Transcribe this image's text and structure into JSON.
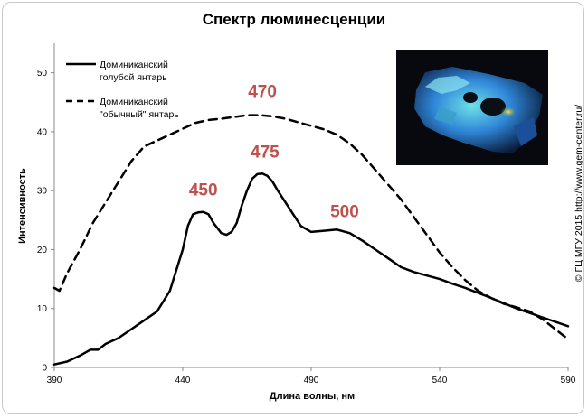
{
  "chart_data": {
    "type": "line",
    "title": "Спектр люминесценции",
    "xlabel": "Длина волны, нм",
    "ylabel": "Интенсивность",
    "xlim": [
      390,
      590
    ],
    "ylim": [
      0,
      55
    ],
    "xticks": [
      390,
      440,
      490,
      540,
      590
    ],
    "yticks": [
      0,
      10,
      20,
      30,
      40,
      50
    ],
    "grid": false,
    "legend_position": "top-left",
    "series": [
      {
        "name": "Доминиканский голубой янтарь",
        "line_style": "solid",
        "color": "#000000",
        "x": [
          390,
          395,
          400,
          404,
          407,
          410,
          415,
          420,
          425,
          430,
          435,
          440,
          442,
          444,
          446,
          448,
          450,
          452,
          455,
          457,
          459,
          461,
          463,
          465,
          467,
          469,
          471,
          473,
          475,
          477,
          480,
          483,
          486,
          490,
          495,
          500,
          505,
          510,
          515,
          520,
          525,
          530,
          535,
          540,
          545,
          550,
          560,
          570,
          580,
          590
        ],
        "y": [
          0.5,
          1.0,
          2.0,
          3.0,
          3.0,
          4.0,
          5.0,
          6.5,
          8.0,
          9.5,
          13.0,
          20.0,
          24.0,
          26.0,
          26.3,
          26.4,
          26.0,
          24.5,
          22.8,
          22.5,
          23.0,
          24.5,
          27.5,
          30.0,
          32.0,
          32.8,
          32.9,
          32.5,
          31.5,
          30.0,
          28.0,
          26.0,
          24.0,
          23.0,
          23.2,
          23.4,
          22.8,
          21.5,
          20.0,
          18.5,
          17.0,
          16.2,
          15.6,
          15.0,
          14.2,
          13.5,
          11.8,
          10.0,
          8.5,
          7.0
        ]
      },
      {
        "name": "Доминиканский \"обычный\" янтарь",
        "line_style": "dashed",
        "color": "#000000",
        "x": [
          390,
          392,
          395,
          400,
          405,
          410,
          415,
          420,
          425,
          430,
          435,
          440,
          445,
          450,
          455,
          460,
          465,
          470,
          475,
          480,
          485,
          490,
          495,
          500,
          505,
          510,
          515,
          520,
          525,
          530,
          535,
          540,
          545,
          550,
          555,
          560,
          565,
          570,
          575,
          580,
          585,
          590
        ],
        "y": [
          13.5,
          13.0,
          16.0,
          20.0,
          24.5,
          28.0,
          31.5,
          35.0,
          37.5,
          38.5,
          39.5,
          40.5,
          41.5,
          42.0,
          42.2,
          42.5,
          42.8,
          42.8,
          42.6,
          42.2,
          41.6,
          41.0,
          40.4,
          39.5,
          38.0,
          36.0,
          33.5,
          31.0,
          28.5,
          25.5,
          22.5,
          19.5,
          17.0,
          14.8,
          13.0,
          11.8,
          10.8,
          10.2,
          9.5,
          8.2,
          6.5,
          4.8
        ]
      }
    ],
    "annotations": [
      {
        "text": "450",
        "x": 448,
        "y": 26.4
      },
      {
        "text": "475",
        "x": 472,
        "y": 32.9
      },
      {
        "text": "470",
        "x": 471,
        "y": 42.8
      },
      {
        "text": "500",
        "x": 503,
        "y": 23.4
      }
    ]
  },
  "legend": {
    "blue_line1": "Доминиканский",
    "blue_line2": "голубой янтарь",
    "regular_line1": "Доминиканский",
    "regular_line2": "\"обычный\" янтарь"
  },
  "copyright": "© ГЦ МГУ 2015 http://www.gem-center.ru/",
  "photo": {
    "subject": "amber-under-uv",
    "colors": [
      "#0a0d14",
      "#1e6fd6",
      "#4fb8d0",
      "#e0d24a"
    ]
  }
}
